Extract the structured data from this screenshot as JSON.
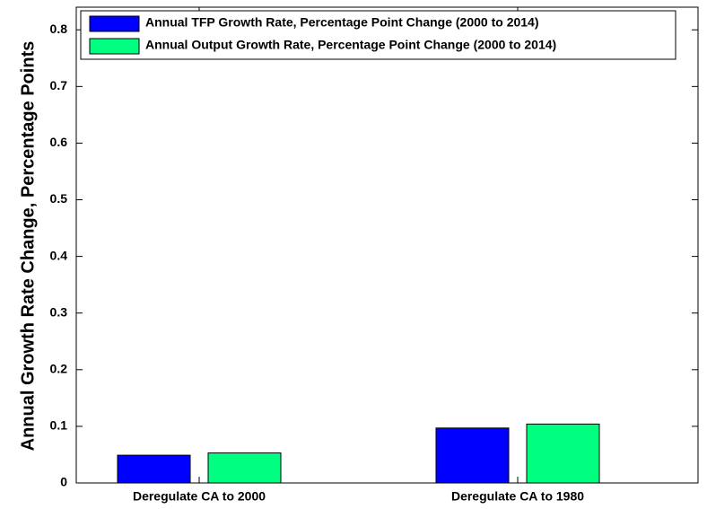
{
  "chart_data": {
    "type": "bar",
    "y_label": "Annual Growth Rate Change, Percentage Points",
    "categories": [
      "Deregulate CA to 2000",
      "Deregulate CA to 1980"
    ],
    "series": [
      {
        "name": "Annual TFP Growth Rate, Percentage Point Change (2000 to 2014)",
        "color": "#0000ff",
        "values": [
          0.049,
          0.097
        ]
      },
      {
        "name": "Annual Output Growth Rate, Percentage Point Change (2000 to 2014)",
        "color": "#00ff80",
        "values": [
          0.053,
          0.104
        ]
      }
    ],
    "ylim": [
      0,
      0.84
    ],
    "yticks": [
      0,
      0.1,
      0.2,
      0.3,
      0.4,
      0.5,
      0.6,
      0.7,
      0.8
    ],
    "legend": "top-left"
  }
}
